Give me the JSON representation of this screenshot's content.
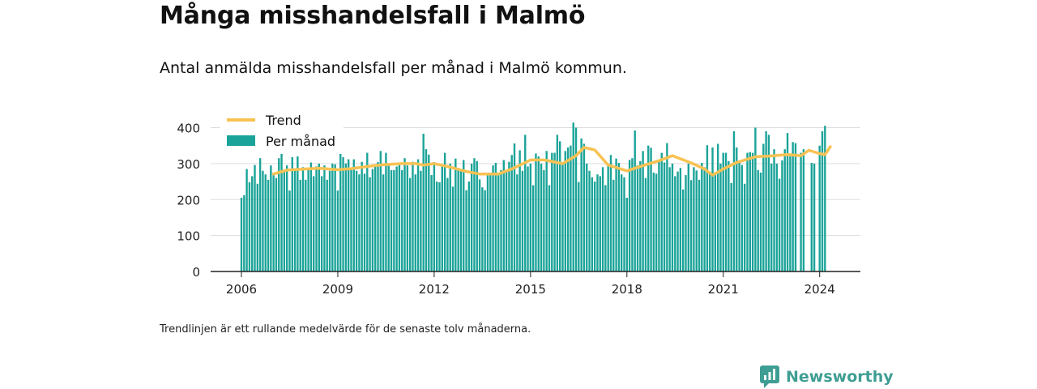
{
  "title": "Många misshandelsfall i Malmö",
  "subtitle": "Antal anmälda misshandelsfall per månad i Malmö kommun.",
  "note": "Trendlinjen är ett rullande medelvärde för de senaste tolv månaderna.",
  "brand": "Newsworthy",
  "colors": {
    "bars": "#1aa398",
    "trend": "#f8c253",
    "grid": "#dddddd",
    "axis": "#222222",
    "brand": "#3f9e93"
  },
  "chart_data": {
    "type": "bar",
    "x_start": "2006-01",
    "x_end": "2024-05",
    "ylim": [
      0,
      430
    ],
    "yticks": [
      0,
      100,
      200,
      300,
      400
    ],
    "xticks": [
      "2006",
      "2009",
      "2012",
      "2015",
      "2018",
      "2021",
      "2024"
    ],
    "grid": "horizontal",
    "legend_position": "top-left",
    "series": [
      {
        "name": "Per månad",
        "mark": "bar",
        "values": [
          205,
          212,
          285,
          248,
          265,
          296,
          244,
          315,
          280,
          270,
          255,
          295,
          270,
          260,
          315,
          345,
          282,
          295,
          225,
          318,
          280,
          320,
          255,
          290,
          255,
          282,
          303,
          265,
          292,
          300,
          265,
          295,
          255,
          280,
          300,
          298,
          225,
          345,
          318,
          300,
          312,
          287,
          312,
          280,
          270,
          305,
          272,
          330,
          262,
          285,
          297,
          304,
          335,
          270,
          330,
          295,
          282,
          282,
          292,
          303,
          282,
          315,
          295,
          260,
          305,
          270,
          312,
          280,
          383,
          340,
          325,
          268,
          304,
          250,
          248,
          297,
          330,
          260,
          300,
          236,
          314,
          285,
          282,
          310,
          226,
          250,
          300,
          315,
          307,
          256,
          234,
          226,
          272,
          270,
          295,
          302,
          275,
          282,
          310,
          280,
          305,
          324,
          356,
          270,
          337,
          280,
          380,
          292,
          300,
          240,
          328,
          320,
          300,
          282,
          335,
          240,
          330,
          330,
          380,
          362,
          300,
          335,
          345,
          350,
          414,
          400,
          249,
          370,
          355,
          300,
          280,
          262,
          250,
          270,
          265,
          290,
          240,
          300,
          324,
          255,
          314,
          302,
          270,
          262,
          205,
          310,
          315,
          392,
          295,
          307,
          335,
          260,
          350,
          344,
          275,
          272,
          310,
          330,
          303,
          357,
          290,
          300,
          265,
          278,
          288,
          228,
          268,
          300,
          254,
          290,
          281,
          255,
          302,
          290,
          351,
          272,
          345,
          268,
          355,
          300,
          330,
          330,
          307,
          246,
          390,
          345,
          306,
          296,
          244,
          330,
          332,
          330,
          400,
          282,
          275,
          355,
          390,
          380,
          300,
          340,
          300,
          258,
          309,
          340,
          385,
          320,
          360,
          357,
          0,
          330,
          340,
          0,
          0,
          302,
          300,
          0,
          350,
          390,
          405
        ],
        "missing_note": "null/0 months are not drawn"
      },
      {
        "name": "Trend",
        "mark": "line",
        "points": [
          [
            "2007-01",
            271
          ],
          [
            "2007-06",
            282
          ],
          [
            "2008-01",
            285
          ],
          [
            "2008-06",
            287
          ],
          [
            "2009-01",
            283
          ],
          [
            "2009-06",
            286
          ],
          [
            "2010-01",
            293
          ],
          [
            "2010-06",
            297
          ],
          [
            "2011-01",
            300
          ],
          [
            "2011-06",
            300
          ],
          [
            "2011-09",
            296
          ],
          [
            "2012-01",
            300
          ],
          [
            "2012-06",
            292
          ],
          [
            "2013-01",
            278
          ],
          [
            "2013-06",
            271
          ],
          [
            "2014-01",
            271
          ],
          [
            "2014-06",
            285
          ],
          [
            "2015-01",
            310
          ],
          [
            "2015-06",
            310
          ],
          [
            "2016-01",
            300
          ],
          [
            "2016-06",
            322
          ],
          [
            "2016-09",
            345
          ],
          [
            "2017-01",
            338
          ],
          [
            "2017-06",
            296
          ],
          [
            "2018-01",
            280
          ],
          [
            "2018-06",
            292
          ],
          [
            "2019-01",
            308
          ],
          [
            "2019-06",
            322
          ],
          [
            "2020-01",
            302
          ],
          [
            "2020-06",
            285
          ],
          [
            "2020-09",
            268
          ],
          [
            "2021-01",
            285
          ],
          [
            "2021-06",
            303
          ],
          [
            "2022-01",
            319
          ],
          [
            "2022-06",
            321
          ],
          [
            "2023-01",
            325
          ],
          [
            "2023-06",
            322
          ],
          [
            "2023-09",
            337
          ],
          [
            "2024-01",
            328
          ],
          [
            "2024-03",
            325
          ],
          [
            "2024-05",
            347
          ]
        ]
      }
    ]
  }
}
